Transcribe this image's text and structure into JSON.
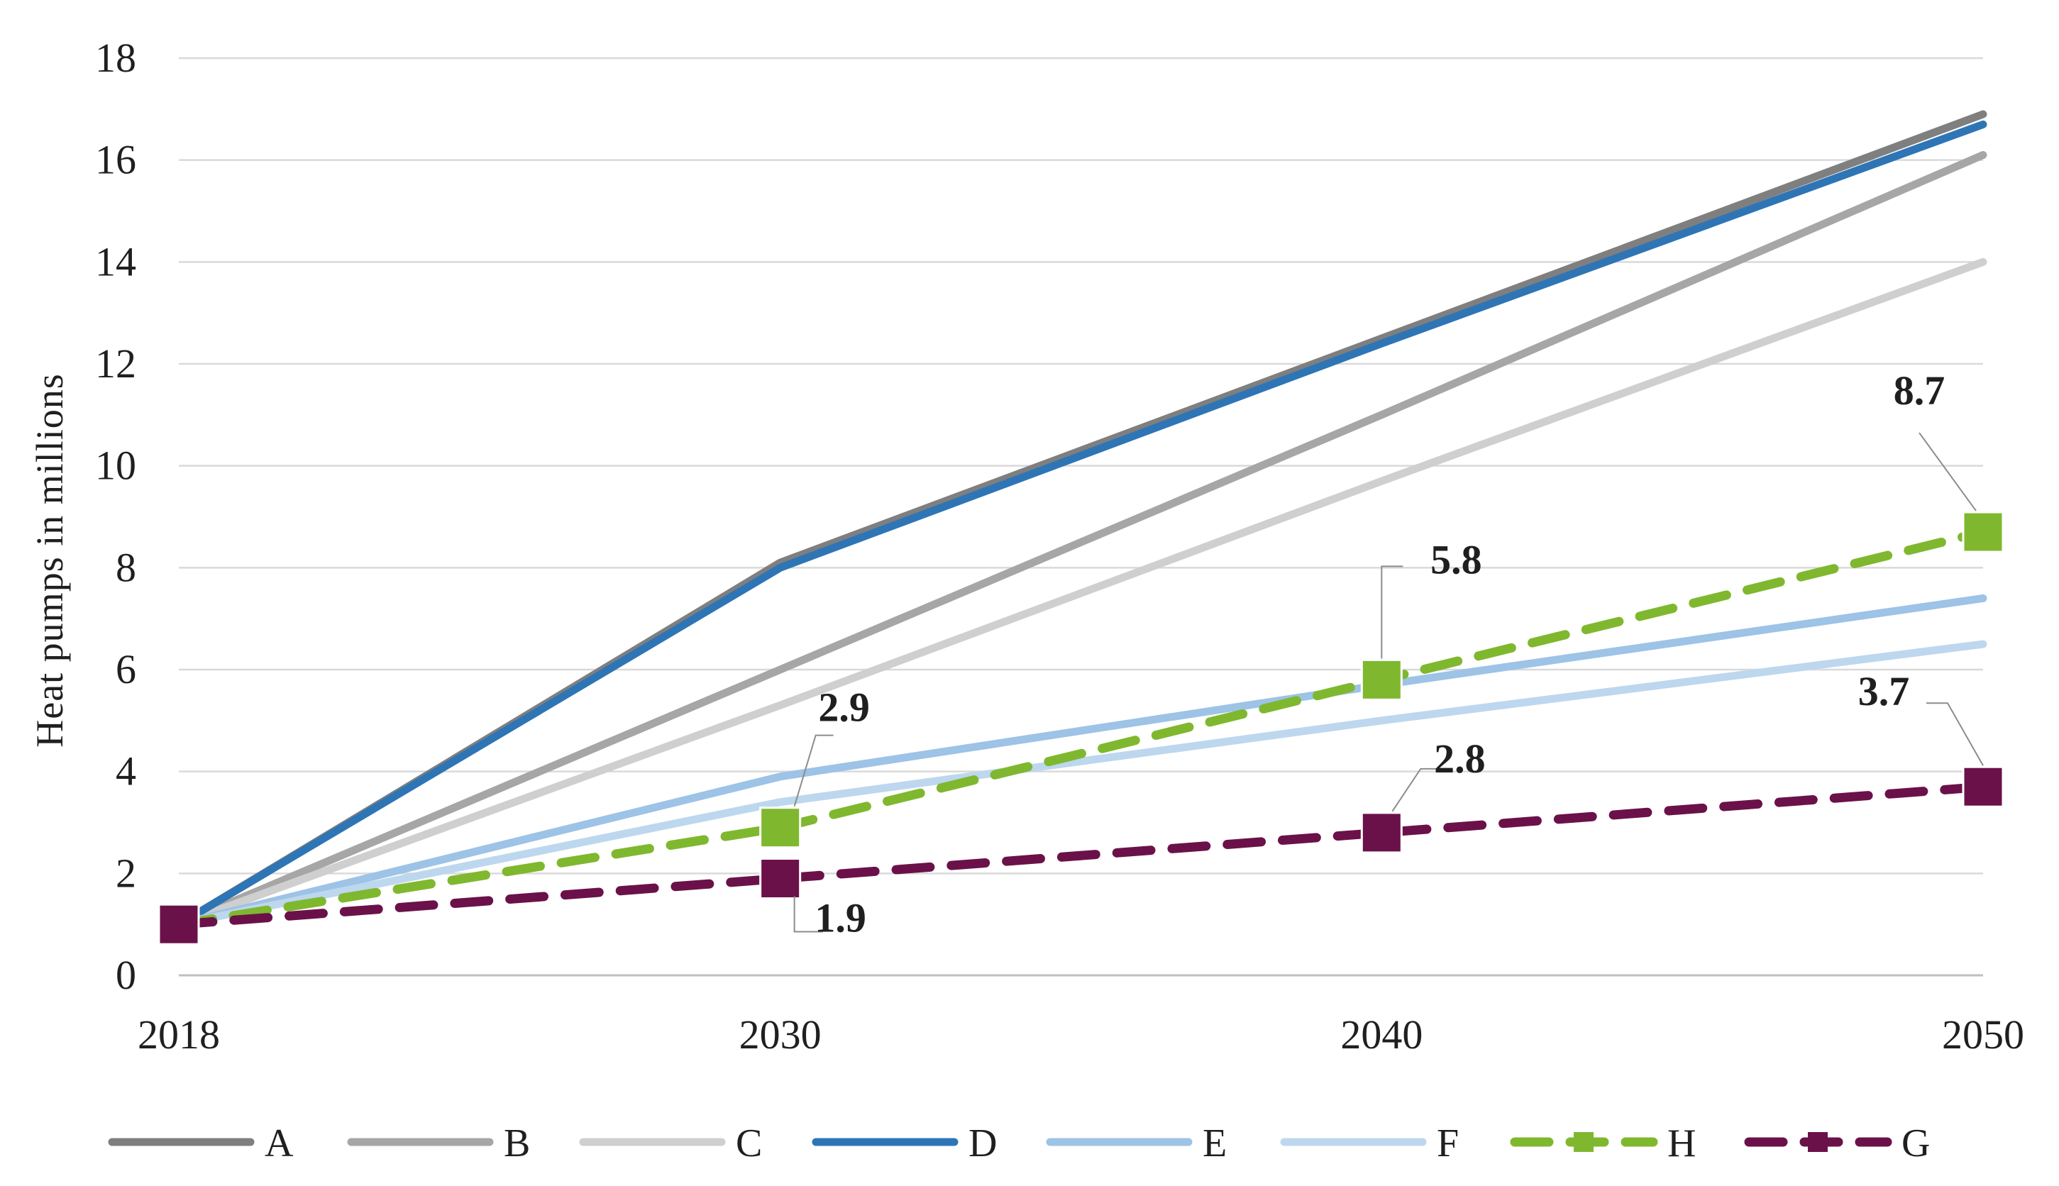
{
  "chart_data": {
    "type": "line",
    "title": "",
    "xlabel": "",
    "ylabel": "Heat pumps in millions",
    "x": [
      "2018",
      "2030",
      "2040",
      "2050"
    ],
    "ylim": [
      0,
      18
    ],
    "yticks": [
      0,
      2,
      4,
      6,
      8,
      10,
      12,
      14,
      16,
      18
    ],
    "grid": true,
    "legend_position": "bottom",
    "series": [
      {
        "name": "A",
        "values": [
          1.0,
          8.1,
          12.5,
          16.9
        ],
        "color": "#7f7f7f",
        "dash": false,
        "marker": false,
        "labels": [
          null,
          null,
          null,
          null
        ]
      },
      {
        "name": "B",
        "values": [
          1.0,
          6.0,
          11.0,
          16.1
        ],
        "color": "#a6a6a6",
        "dash": false,
        "marker": false,
        "labels": [
          null,
          null,
          null,
          null
        ]
      },
      {
        "name": "C",
        "values": [
          1.0,
          5.3,
          9.7,
          14.0
        ],
        "color": "#cfcfcf",
        "dash": false,
        "marker": false,
        "labels": [
          null,
          null,
          null,
          null
        ]
      },
      {
        "name": "D",
        "values": [
          1.0,
          8.0,
          12.4,
          16.7
        ],
        "color": "#2e75b6",
        "dash": false,
        "marker": false,
        "labels": [
          null,
          null,
          null,
          null
        ]
      },
      {
        "name": "E",
        "values": [
          1.0,
          3.9,
          5.7,
          7.4
        ],
        "color": "#9dc3e6",
        "dash": false,
        "marker": false,
        "labels": [
          null,
          null,
          null,
          null
        ]
      },
      {
        "name": "F",
        "values": [
          1.0,
          3.4,
          5.0,
          6.5
        ],
        "color": "#bdd7ee",
        "dash": false,
        "marker": false,
        "labels": [
          null,
          null,
          null,
          null
        ]
      },
      {
        "name": "H",
        "values": [
          1.0,
          2.9,
          5.8,
          8.7
        ],
        "color": "#7fb82e",
        "dash": true,
        "marker": true,
        "labels": [
          null,
          "2.9",
          "5.8",
          "8.7"
        ]
      },
      {
        "name": "G",
        "values": [
          1.0,
          1.9,
          2.8,
          3.7
        ],
        "color": "#6b1149",
        "dash": true,
        "marker": true,
        "labels": [
          null,
          "1.9",
          "2.8",
          "3.7"
        ]
      }
    ]
  }
}
